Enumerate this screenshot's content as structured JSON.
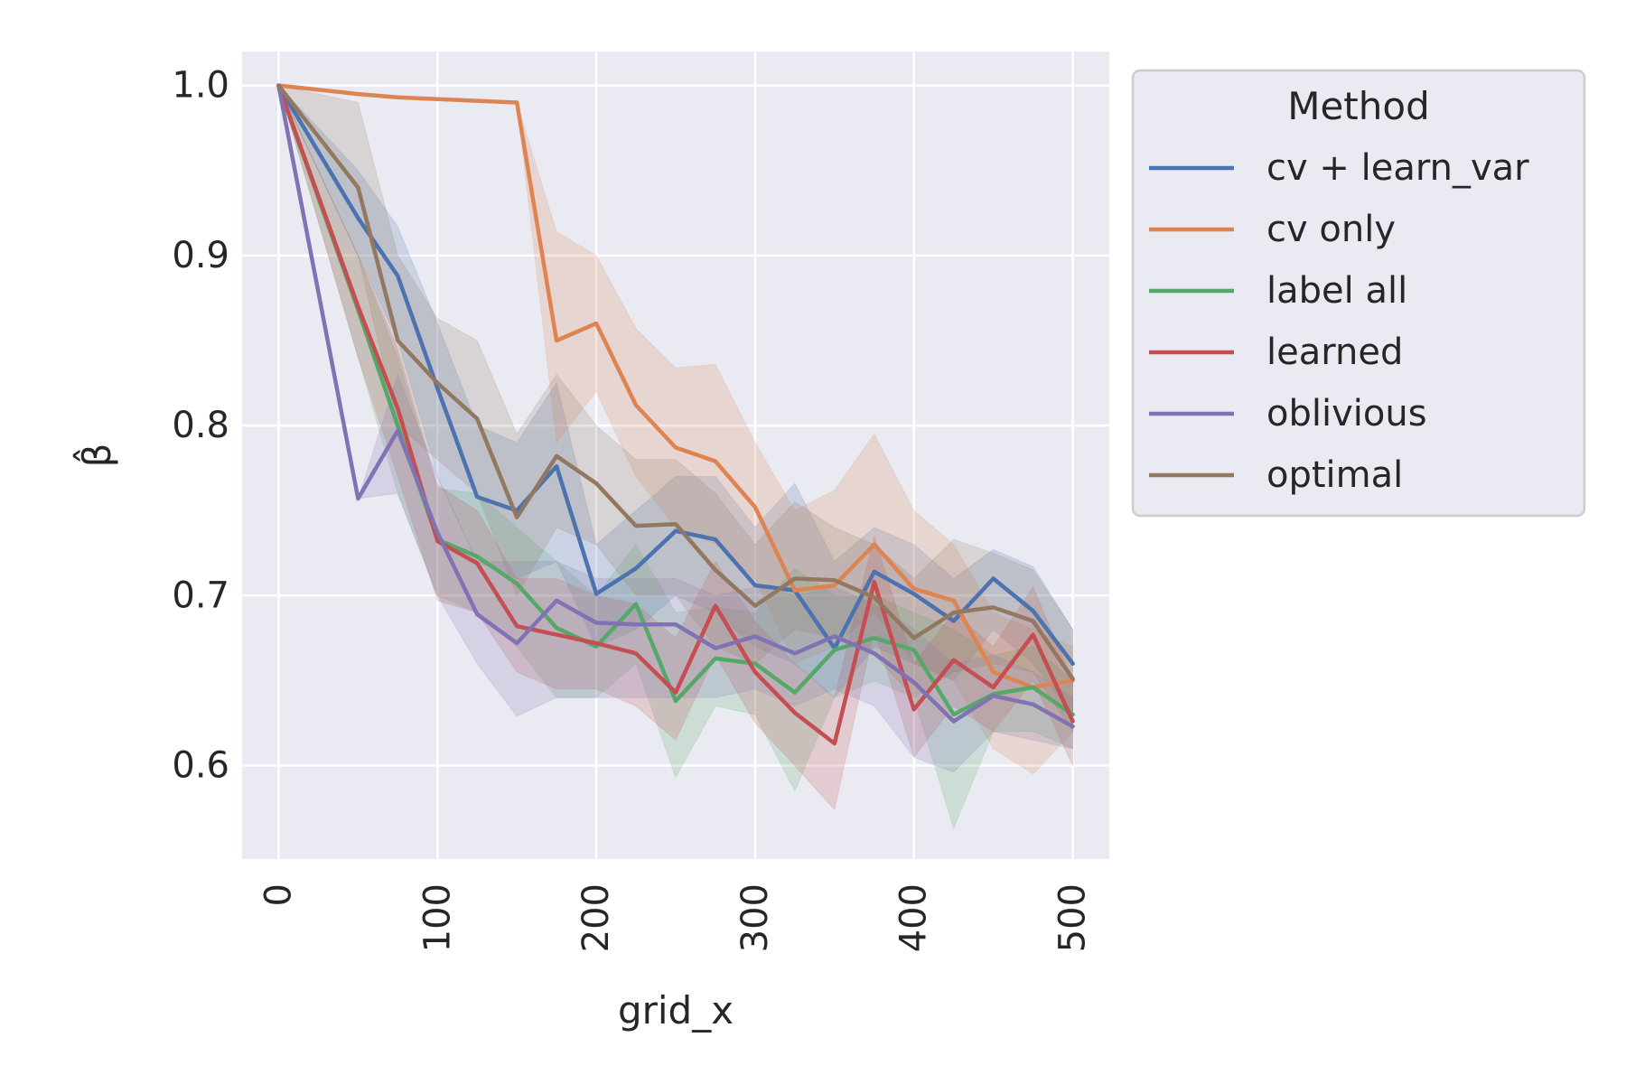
{
  "chart_data": {
    "type": "line",
    "xlabel": "grid_x",
    "ylabel": "β̂",
    "xlim": [
      -23,
      523
    ],
    "ylim": [
      0.545,
      1.02
    ],
    "xticks": [
      0,
      100,
      200,
      300,
      400,
      500
    ],
    "yticks": [
      0.6,
      0.7,
      0.8,
      0.9,
      1.0
    ],
    "ytick_labels": [
      "0.6",
      "0.7",
      "0.8",
      "0.9",
      "1.0"
    ],
    "grid": true,
    "legend": {
      "title": "Method",
      "placement": "outside-right"
    },
    "x": [
      0,
      50,
      75,
      100,
      125,
      150,
      175,
      200,
      225,
      250,
      275,
      300,
      325,
      350,
      375,
      400,
      425,
      450,
      475,
      500
    ],
    "series": [
      {
        "name": "cv + learn_var",
        "color": "#4c72b0",
        "values": [
          1.0,
          0.922,
          0.888,
          0.822,
          0.758,
          0.75,
          0.776,
          0.701,
          0.716,
          0.738,
          0.733,
          0.706,
          0.703,
          0.669,
          0.714,
          0.701,
          0.685,
          0.71,
          0.691,
          0.66
        ],
        "lower": [
          1.0,
          0.9,
          0.85,
          0.77,
          0.72,
          0.71,
          0.72,
          0.67,
          0.68,
          0.7,
          0.69,
          0.67,
          0.66,
          0.64,
          0.67,
          0.66,
          0.65,
          0.68,
          0.66,
          0.63
        ],
        "upper": [
          1.0,
          0.95,
          0.917,
          0.86,
          0.8,
          0.79,
          0.825,
          0.73,
          0.75,
          0.77,
          0.77,
          0.74,
          0.766,
          0.72,
          0.74,
          0.73,
          0.71,
          0.727,
          0.717,
          0.68
        ]
      },
      {
        "name": "cv only",
        "color": "#dd8452",
        "values": [
          1.0,
          0.995,
          0.993,
          0.992,
          0.991,
          0.99,
          0.85,
          0.86,
          0.812,
          0.787,
          0.779,
          0.752,
          0.703,
          0.706,
          0.73,
          0.704,
          0.697,
          0.655,
          0.646,
          0.65
        ],
        "lower": [
          1.0,
          0.995,
          0.993,
          0.992,
          0.991,
          0.99,
          0.79,
          0.82,
          0.77,
          0.74,
          0.73,
          0.71,
          0.66,
          0.67,
          0.69,
          0.66,
          0.65,
          0.61,
          0.595,
          0.62
        ],
        "upper": [
          1.0,
          0.995,
          0.993,
          0.992,
          0.991,
          0.99,
          0.914,
          0.9,
          0.857,
          0.834,
          0.836,
          0.79,
          0.75,
          0.762,
          0.795,
          0.75,
          0.73,
          0.69,
          0.68,
          0.67
        ]
      },
      {
        "name": "label all",
        "color": "#55a868",
        "values": [
          1.0,
          0.868,
          0.8,
          0.733,
          0.723,
          0.707,
          0.681,
          0.67,
          0.695,
          0.638,
          0.663,
          0.66,
          0.643,
          0.668,
          0.675,
          0.668,
          0.63,
          0.642,
          0.646,
          0.63
        ],
        "lower": [
          1.0,
          0.84,
          0.76,
          0.7,
          0.69,
          0.67,
          0.64,
          0.64,
          0.66,
          0.593,
          0.635,
          0.63,
          0.585,
          0.64,
          0.65,
          0.64,
          0.563,
          0.62,
          0.62,
          0.61
        ],
        "upper": [
          1.0,
          0.9,
          0.84,
          0.763,
          0.76,
          0.74,
          0.72,
          0.7,
          0.73,
          0.69,
          0.693,
          0.69,
          0.716,
          0.7,
          0.7,
          0.69,
          0.68,
          0.665,
          0.67,
          0.65
        ]
      },
      {
        "name": "learned",
        "color": "#c44e52",
        "values": [
          1.0,
          0.87,
          0.81,
          0.732,
          0.719,
          0.682,
          0.677,
          0.672,
          0.666,
          0.643,
          0.694,
          0.655,
          0.631,
          0.613,
          0.708,
          0.633,
          0.662,
          0.646,
          0.677,
          0.626
        ],
        "lower": [
          1.0,
          0.84,
          0.77,
          0.697,
          0.69,
          0.655,
          0.645,
          0.645,
          0.635,
          0.615,
          0.665,
          0.625,
          0.6,
          0.574,
          0.68,
          0.605,
          0.635,
          0.62,
          0.65,
          0.6
        ],
        "upper": [
          1.0,
          0.9,
          0.845,
          0.765,
          0.75,
          0.71,
          0.71,
          0.7,
          0.695,
          0.675,
          0.72,
          0.685,
          0.66,
          0.64,
          0.735,
          0.66,
          0.69,
          0.67,
          0.705,
          0.65
        ]
      },
      {
        "name": "oblivious",
        "color": "#8172b3",
        "values": [
          1.0,
          0.757,
          0.797,
          0.737,
          0.689,
          0.672,
          0.697,
          0.684,
          0.683,
          0.683,
          0.669,
          0.676,
          0.666,
          0.676,
          0.666,
          0.649,
          0.626,
          0.641,
          0.636,
          0.623
        ],
        "lower": [
          1.0,
          0.757,
          0.76,
          0.7,
          0.66,
          0.629,
          0.64,
          0.64,
          0.64,
          0.64,
          0.64,
          0.645,
          0.635,
          0.645,
          0.635,
          0.605,
          0.596,
          0.62,
          0.615,
          0.61
        ],
        "upper": [
          1.0,
          0.757,
          0.83,
          0.77,
          0.72,
          0.72,
          0.72,
          0.71,
          0.71,
          0.71,
          0.7,
          0.705,
          0.7,
          0.705,
          0.695,
          0.68,
          0.66,
          0.665,
          0.655,
          0.64
        ]
      },
      {
        "name": "optimal",
        "color": "#937860",
        "values": [
          1.0,
          0.94,
          0.85,
          0.825,
          0.804,
          0.746,
          0.782,
          0.766,
          0.741,
          0.742,
          0.715,
          0.694,
          0.71,
          0.709,
          0.699,
          0.675,
          0.69,
          0.693,
          0.685,
          0.651
        ],
        "lower": [
          1.0,
          0.9,
          0.8,
          0.78,
          0.76,
          0.7,
          0.74,
          0.73,
          0.7,
          0.7,
          0.67,
          0.66,
          0.68,
          0.675,
          0.665,
          0.64,
          0.655,
          0.66,
          0.655,
          0.62
        ],
        "upper": [
          1.0,
          0.99,
          0.9,
          0.863,
          0.85,
          0.795,
          0.83,
          0.8,
          0.78,
          0.78,
          0.76,
          0.73,
          0.755,
          0.74,
          0.73,
          0.71,
          0.733,
          0.725,
          0.715,
          0.68
        ]
      }
    ]
  }
}
